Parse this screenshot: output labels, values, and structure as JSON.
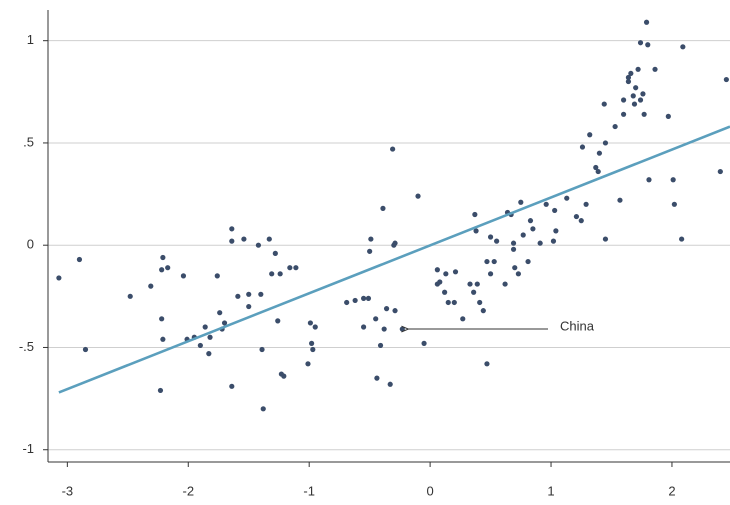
{
  "chart_data": {
    "type": "scatter",
    "x": [
      -3.07,
      -2.9,
      -2.85,
      -2.48,
      -2.31,
      -2.21,
      -2.22,
      -2.17,
      -2.04,
      -2.22,
      -2.21,
      -2.23,
      -2.01,
      -1.95,
      -1.9,
      -1.86,
      -1.83,
      -1.82,
      -1.76,
      -1.74,
      -1.72,
      -1.7,
      -1.64,
      -1.64,
      -1.64,
      -1.54,
      -1.59,
      -1.5,
      -1.5,
      -1.42,
      -1.4,
      -1.39,
      -1.38,
      -1.33,
      -1.31,
      -1.28,
      -1.26,
      -1.24,
      -1.23,
      -1.21,
      -1.16,
      -1.11,
      -1.01,
      -0.99,
      -0.98,
      -0.95,
      -0.97,
      -0.69,
      -0.62,
      -0.55,
      -0.55,
      -0.51,
      -0.5,
      -0.49,
      -0.45,
      -0.44,
      -0.41,
      -0.39,
      -0.38,
      -0.36,
      -0.33,
      -0.31,
      -0.3,
      -0.29,
      -0.29,
      -0.23,
      -0.1,
      -0.05,
      0.06,
      0.06,
      0.08,
      0.12,
      0.13,
      0.15,
      0.2,
      0.21,
      0.27,
      0.33,
      0.36,
      0.37,
      0.38,
      0.39,
      0.41,
      0.44,
      0.47,
      0.47,
      0.5,
      0.5,
      0.55,
      0.53,
      0.62,
      0.64,
      0.67,
      0.69,
      0.69,
      0.7,
      0.73,
      0.75,
      0.77,
      0.81,
      0.83,
      0.85,
      0.91,
      0.96,
      1.02,
      1.03,
      1.04,
      1.13,
      1.21,
      1.25,
      1.26,
      1.29,
      1.32,
      1.37,
      1.39,
      1.4,
      1.44,
      1.45,
      1.45,
      1.53,
      1.57,
      1.6,
      1.6,
      1.64,
      1.64,
      1.66,
      1.68,
      1.69,
      1.7,
      1.72,
      1.74,
      1.74,
      1.76,
      1.77,
      1.79,
      1.8,
      1.81,
      1.86,
      1.97,
      2.01,
      2.02,
      2.08,
      2.09,
      2.4,
      2.45
    ],
    "values": [
      -0.16,
      -0.07,
      -0.51,
      -0.25,
      -0.2,
      -0.06,
      -0.12,
      -0.11,
      -0.15,
      -0.36,
      -0.46,
      -0.71,
      -0.46,
      -0.45,
      -0.49,
      -0.4,
      -0.53,
      -0.45,
      -0.15,
      -0.33,
      -0.41,
      -0.38,
      0.08,
      0.02,
      -0.69,
      0.03,
      -0.25,
      -0.24,
      -0.3,
      0.0,
      -0.24,
      -0.51,
      -0.8,
      0.03,
      -0.14,
      -0.04,
      -0.37,
      -0.14,
      -0.63,
      -0.64,
      -0.11,
      -0.11,
      -0.58,
      -0.38,
      -0.48,
      -0.4,
      -0.51,
      -0.28,
      -0.27,
      -0.4,
      -0.26,
      -0.26,
      -0.03,
      0.03,
      -0.36,
      -0.65,
      -0.49,
      0.18,
      -0.41,
      -0.31,
      -0.68,
      0.47,
      0.0,
      0.01,
      -0.32,
      -0.41,
      0.24,
      -0.48,
      -0.12,
      -0.19,
      -0.18,
      -0.23,
      -0.14,
      -0.28,
      -0.28,
      -0.13,
      -0.36,
      -0.19,
      -0.23,
      0.15,
      0.07,
      -0.19,
      -0.28,
      -0.32,
      -0.58,
      -0.08,
      -0.14,
      0.04,
      0.02,
      -0.08,
      -0.19,
      0.16,
      0.15,
      -0.02,
      0.01,
      -0.11,
      -0.14,
      0.21,
      0.05,
      -0.08,
      0.12,
      0.08,
      0.01,
      0.2,
      0.02,
      0.17,
      0.07,
      0.23,
      0.14,
      0.12,
      0.48,
      0.2,
      0.54,
      0.38,
      0.36,
      0.45,
      0.69,
      0.5,
      0.03,
      0.58,
      0.22,
      0.71,
      0.64,
      0.8,
      0.82,
      0.84,
      0.73,
      0.69,
      0.77,
      0.86,
      0.71,
      0.99,
      0.74,
      0.64,
      1.09,
      0.98,
      0.32,
      0.86,
      0.63,
      0.32,
      0.2,
      0.03,
      0.97,
      0.36,
      0.81
    ],
    "color": "#3b4d6a",
    "fit": {
      "x": [
        -3.07,
        2.48
      ],
      "values": [
        -0.72,
        0.58
      ],
      "color": "#5b9fbd"
    },
    "annotation": {
      "text": "China",
      "x": -0.23,
      "y": -0.41
    },
    "xlim": [
      -3.16,
      2.48
    ],
    "ylim": [
      -1.06,
      1.15
    ],
    "xticks": [
      -3,
      -2,
      -1,
      0,
      1,
      2
    ],
    "yticks": [
      -1,
      {
        "value": -0.5,
        "label": "-.5"
      },
      0,
      {
        "value": 0.5,
        "label": ".5"
      },
      1
    ],
    "grid": true
  }
}
